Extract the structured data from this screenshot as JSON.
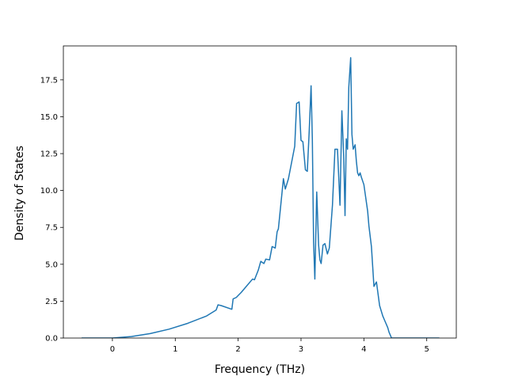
{
  "chart_data": {
    "type": "line",
    "title": "",
    "xlabel": "Frequency (THz)",
    "ylabel": "Density of States",
    "xlim": [
      -0.78,
      5.47
    ],
    "ylim": [
      0,
      19.8
    ],
    "xticks": [
      0,
      1,
      2,
      3,
      4,
      5
    ],
    "xtick_labels": [
      "0",
      "1",
      "2",
      "3",
      "4",
      "5"
    ],
    "yticks": [
      0.0,
      2.5,
      5.0,
      7.5,
      10.0,
      12.5,
      15.0,
      17.5
    ],
    "ytick_labels": [
      "0.0",
      "2.5",
      "5.0",
      "7.5",
      "10.0",
      "12.5",
      "15.0",
      "17.5"
    ],
    "grid": false,
    "legend": "none",
    "line_color": "#1f77b4",
    "series": [
      {
        "x": [
          -0.49,
          0.0,
          0.3,
          0.6,
          0.9,
          1.2,
          1.5,
          1.65,
          1.68,
          1.73,
          1.9,
          1.92,
          1.97,
          2.05,
          2.15,
          2.23,
          2.26,
          2.32,
          2.36,
          2.41,
          2.44,
          2.5,
          2.54,
          2.59,
          2.62,
          2.64,
          2.68,
          2.72,
          2.75,
          2.8,
          2.85,
          2.9,
          2.93,
          2.97,
          3.0,
          3.03,
          3.07,
          3.1,
          3.13,
          3.16,
          3.18,
          3.2,
          3.22,
          3.25,
          3.28,
          3.3,
          3.32,
          3.35,
          3.38,
          3.42,
          3.45,
          3.5,
          3.54,
          3.58,
          3.62,
          3.65,
          3.68,
          3.7,
          3.72,
          3.74,
          3.76,
          3.79,
          3.81,
          3.83,
          3.86,
          3.88,
          3.9,
          3.92,
          3.94,
          3.96,
          4.0,
          4.03,
          4.06,
          4.08,
          4.12,
          4.16,
          4.2,
          4.25,
          4.3,
          4.34,
          4.38,
          4.4,
          4.44,
          4.48,
          4.52,
          4.58,
          4.65,
          4.7,
          4.73,
          4.75,
          5.2
        ],
        "y": [
          0.0,
          0.0,
          0.1,
          0.3,
          0.6,
          1.0,
          1.5,
          1.9,
          2.25,
          2.2,
          1.95,
          2.65,
          2.75,
          3.1,
          3.6,
          4.0,
          3.95,
          4.6,
          5.2,
          5.05,
          5.35,
          5.3,
          6.2,
          6.1,
          7.2,
          7.4,
          9.1,
          10.8,
          10.1,
          10.8,
          11.9,
          13.0,
          15.9,
          16.0,
          13.4,
          13.3,
          11.4,
          11.3,
          14.0,
          17.1,
          13.5,
          6.5,
          4.0,
          9.9,
          6.3,
          5.3,
          5.05,
          6.3,
          6.4,
          5.7,
          6.1,
          9.0,
          12.8,
          12.8,
          9.0,
          15.4,
          12.2,
          8.3,
          13.5,
          12.8,
          17.0,
          19.0,
          13.8,
          12.8,
          13.1,
          12.0,
          11.2,
          11.0,
          11.2,
          10.9,
          10.4,
          9.5,
          8.6,
          7.6,
          6.2,
          3.5,
          3.8,
          2.2,
          1.5,
          1.1,
          0.7,
          0.4,
          0.0,
          0.0,
          0.0,
          0.0,
          0.0,
          0.0,
          0.0,
          0.0,
          0.0
        ]
      }
    ]
  }
}
